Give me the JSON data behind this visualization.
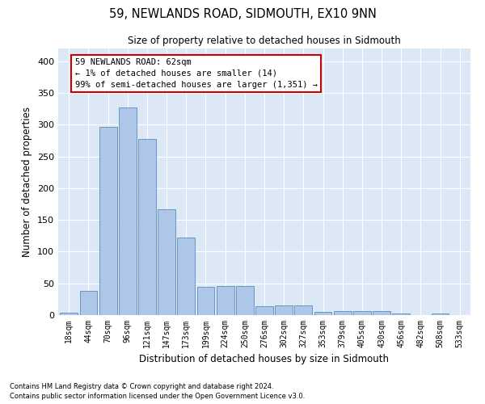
{
  "title_line1": "59, NEWLANDS ROAD, SIDMOUTH, EX10 9NN",
  "title_line2": "Size of property relative to detached houses in Sidmouth",
  "xlabel": "Distribution of detached houses by size in Sidmouth",
  "ylabel": "Number of detached properties",
  "bar_labels": [
    "18sqm",
    "44sqm",
    "70sqm",
    "96sqm",
    "121sqm",
    "147sqm",
    "173sqm",
    "199sqm",
    "224sqm",
    "250sqm",
    "276sqm",
    "302sqm",
    "327sqm",
    "353sqm",
    "379sqm",
    "405sqm",
    "430sqm",
    "456sqm",
    "482sqm",
    "508sqm",
    "533sqm"
  ],
  "bar_heights": [
    4,
    38,
    297,
    327,
    278,
    167,
    122,
    44,
    46,
    46,
    14,
    15,
    15,
    5,
    6,
    6,
    6,
    3,
    0,
    3,
    0
  ],
  "bar_color": "#aec6e8",
  "bar_edge_color": "#5b8db8",
  "annotation_text": "59 NEWLANDS ROAD: 62sqm\n← 1% of detached houses are smaller (14)\n99% of semi-detached houses are larger (1,351) →",
  "annotation_box_color": "#ffffff",
  "annotation_box_edge_color": "#cc0000",
  "background_color": "#dce8f5",
  "grid_color": "#ffffff",
  "ylim": [
    0,
    420
  ],
  "yticks": [
    0,
    50,
    100,
    150,
    200,
    250,
    300,
    350,
    400
  ],
  "footer_line1": "Contains HM Land Registry data © Crown copyright and database right 2024.",
  "footer_line2": "Contains public sector information licensed under the Open Government Licence v3.0."
}
